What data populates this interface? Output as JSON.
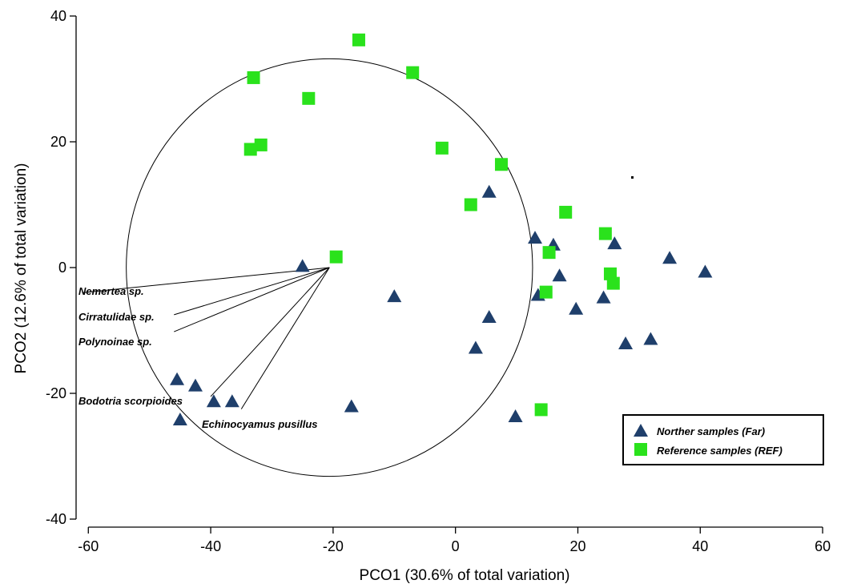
{
  "chart_data": {
    "type": "scatter",
    "xlabel": "PCO1 (30.6% of total variation)",
    "ylabel": "PCO2 (12.6% of total variation)",
    "xlim": [
      -62,
      63
    ],
    "ylim": [
      -40,
      40
    ],
    "xticks": [
      -60,
      -40,
      -20,
      0,
      20,
      40,
      60
    ],
    "yticks": [
      -40,
      -20,
      0,
      20,
      40
    ],
    "colors": {
      "far": "#1f3f6b",
      "ref": "#2ae21c"
    },
    "series": [
      {
        "name": "Norther samples (Far)",
        "marker": "triangle",
        "points": [
          {
            "x": 5.5,
            "y": 12
          },
          {
            "x": 13,
            "y": 4.7
          },
          {
            "x": 16,
            "y": 3.6
          },
          {
            "x": 26,
            "y": 3.8
          },
          {
            "x": 35,
            "y": 1.5
          },
          {
            "x": 40.8,
            "y": -0.7
          },
          {
            "x": -25,
            "y": 0.2
          },
          {
            "x": 17,
            "y": -1.3
          },
          {
            "x": 13.5,
            "y": -4.4
          },
          {
            "x": -10,
            "y": -4.6
          },
          {
            "x": 19.7,
            "y": -6.6
          },
          {
            "x": 24.2,
            "y": -4.8
          },
          {
            "x": 5.5,
            "y": -7.9
          },
          {
            "x": 3.3,
            "y": -12.8
          },
          {
            "x": 27.8,
            "y": -12.1
          },
          {
            "x": 31.9,
            "y": -11.4
          },
          {
            "x": -45.5,
            "y": -17.8
          },
          {
            "x": -42.5,
            "y": -18.8
          },
          {
            "x": -39.5,
            "y": -21.3
          },
          {
            "x": -36.5,
            "y": -21.3
          },
          {
            "x": -17,
            "y": -22.1
          },
          {
            "x": -45,
            "y": -24.2
          },
          {
            "x": 9.8,
            "y": -23.7
          }
        ]
      },
      {
        "name": "Reference samples (REF)",
        "marker": "square",
        "points": [
          {
            "x": -15.8,
            "y": 36.2
          },
          {
            "x": -7,
            "y": 31
          },
          {
            "x": -33,
            "y": 30.2
          },
          {
            "x": -24,
            "y": 26.9
          },
          {
            "x": -33.5,
            "y": 18.8
          },
          {
            "x": -31.8,
            "y": 19.5
          },
          {
            "x": -2.2,
            "y": 19
          },
          {
            "x": 7.5,
            "y": 16.4
          },
          {
            "x": 2.5,
            "y": 10
          },
          {
            "x": 18,
            "y": 8.8
          },
          {
            "x": 24.5,
            "y": 5.4
          },
          {
            "x": 15.3,
            "y": 2.4
          },
          {
            "x": -19.5,
            "y": 1.7
          },
          {
            "x": 25.3,
            "y": -1
          },
          {
            "x": 25.8,
            "y": -2.5
          },
          {
            "x": 14.8,
            "y": -3.9
          },
          {
            "x": 14,
            "y": -22.6
          }
        ]
      }
    ],
    "vectors": [
      {
        "label": "Nemertea sp.",
        "end": {
          "x": -61,
          "y": -4
        }
      },
      {
        "label": "Cirratulidae sp.",
        "end": {
          "x": -46,
          "y": -7.5
        }
      },
      {
        "label": "Polynoinae sp.",
        "end": {
          "x": -46,
          "y": -10.2
        }
      },
      {
        "label": "Bodotria scorpioides",
        "end": {
          "x": -40,
          "y": -20.5
        }
      },
      {
        "label": "Echinocyamus pusillus",
        "end": {
          "x": -35,
          "y": -22.5
        }
      }
    ],
    "vector_origin": {
      "x": -20.6,
      "y": 0
    },
    "circle": {
      "center": {
        "x": -20.6,
        "y": 0
      },
      "radius": 33.2
    },
    "legend": {
      "position": "bottom-right",
      "entries": [
        "Norther samples (Far)",
        "Reference samples (REF)"
      ]
    }
  }
}
